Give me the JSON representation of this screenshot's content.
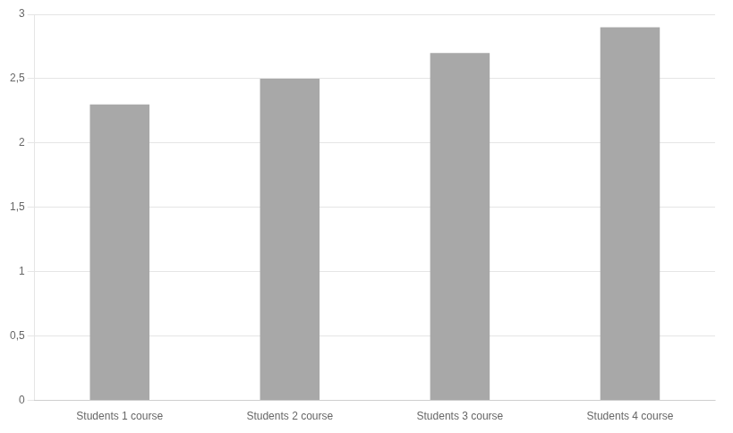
{
  "chart_data": {
    "type": "bar",
    "categories": [
      "Students 1 course",
      "Students 2 course",
      "Students 3 course",
      "Students 4 course"
    ],
    "values": [
      2.3,
      2.5,
      2.7,
      2.9
    ],
    "color": "#a8a8a8",
    "ylim": [
      0,
      3.0
    ],
    "yticks": [
      0,
      {
        "value": 0.5,
        "label": "0,5"
      },
      1,
      {
        "value": 1.5,
        "label": "1,5"
      },
      2,
      {
        "value": 2.5,
        "label": "2,5"
      },
      3
    ],
    "grid": true
  }
}
